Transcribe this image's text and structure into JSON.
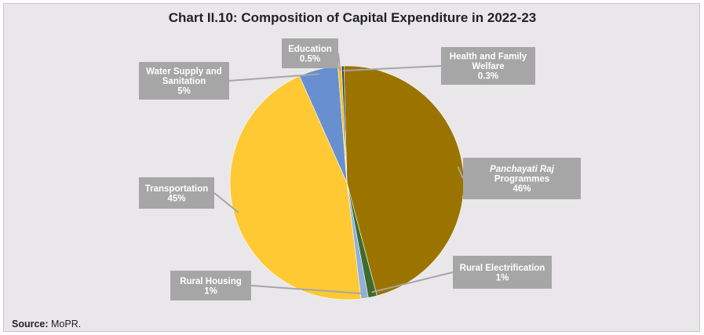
{
  "chart_data": {
    "type": "pie",
    "title": "Chart II.10: Composition of Capital Expenditure in 2022-23",
    "slices": [
      {
        "label_lines": [
          "Panchayati Raj",
          "Programmes"
        ],
        "value_label": "46%",
        "value": 46.0,
        "color": "#9b7400"
      },
      {
        "label_lines": [
          "Rural Electrification"
        ],
        "value_label": "1%",
        "value": 1.2,
        "color": "#3f6b2c"
      },
      {
        "label_lines": [
          "Rural Housing"
        ],
        "value_label": "1%",
        "value": 1.0,
        "color": "#8fb0d8"
      },
      {
        "label_lines": [
          "Transportation"
        ],
        "value_label": "45%",
        "value": 45.0,
        "color": "#ffc933"
      },
      {
        "label_lines": [
          "Water Supply and",
          "Sanitation"
        ],
        "value_label": "5%",
        "value": 5.4,
        "color": "#6890d0"
      },
      {
        "label_lines": [
          "Education"
        ],
        "value_label": "0.5%",
        "value": 0.5,
        "color": "#f0c419"
      },
      {
        "label_lines": [
          "Health and Family",
          "Welfare"
        ],
        "value_label": "0.3%",
        "value": 0.3,
        "color": "#1f3864"
      }
    ]
  },
  "source": {
    "prefix": "Source:",
    "text": " MoPR."
  }
}
